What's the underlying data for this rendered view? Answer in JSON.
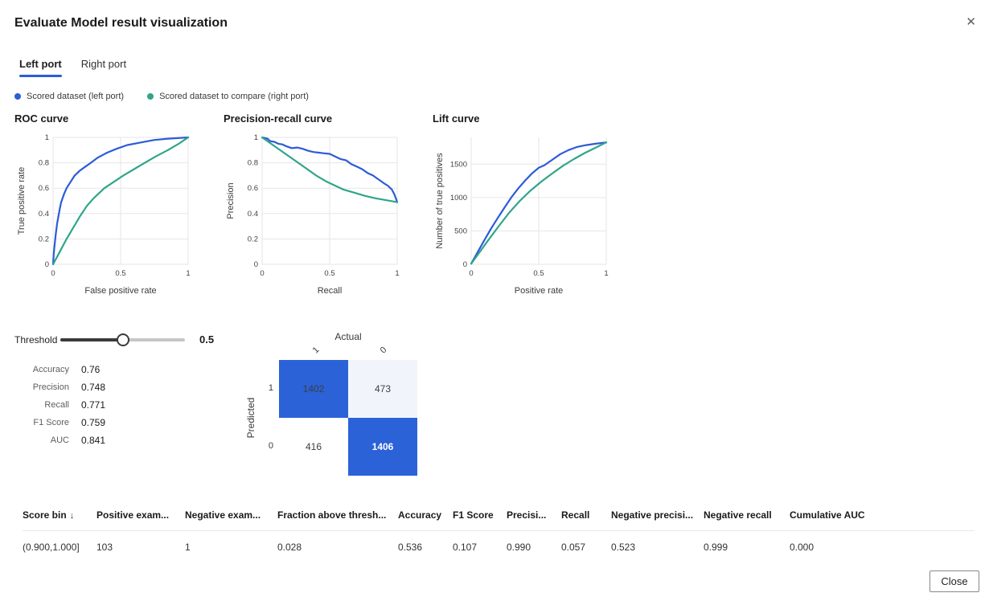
{
  "dialog": {
    "title": "Evaluate Model result visualization",
    "close_icon": "✕"
  },
  "colors": {
    "accent_blue": "#2b5cd9",
    "series_blue": "#2d5bd8",
    "series_green": "#2fa58a",
    "matrix_blue": "#2b62d8",
    "matrix_light_blue": "#f1f5fb",
    "matrix_white": "#ffffff"
  },
  "tabs": [
    {
      "label": "Left port",
      "active": true
    },
    {
      "label": "Right port",
      "active": false
    }
  ],
  "legend": [
    {
      "label": "Scored dataset (left port)",
      "color": "#2b5cd9"
    },
    {
      "label": "Scored dataset to compare (right port)",
      "color": "#2fa58a"
    }
  ],
  "chart_data": [
    {
      "type": "line",
      "title": "ROC curve",
      "xlabel": "False positive rate",
      "ylabel": "True positive rate",
      "xlim": [
        0,
        1
      ],
      "ylim": [
        0,
        1
      ],
      "xticks": [
        0,
        0.5,
        1
      ],
      "xtick_labels": [
        "0",
        "0.5",
        "1"
      ],
      "yticks": [
        0,
        0.2,
        0.4,
        0.6,
        0.8,
        1
      ],
      "ytick_labels": [
        "0",
        "0.2",
        "0.4",
        "0.6",
        "0.8",
        "1"
      ],
      "grid": true,
      "legend_position": "shared-top",
      "series": [
        {
          "name": "Scored dataset (left port)",
          "color": "#2d5bd8",
          "points": [
            [
              0,
              0
            ],
            [
              0.005,
              0.08
            ],
            [
              0.01,
              0.14
            ],
            [
              0.02,
              0.24
            ],
            [
              0.03,
              0.32
            ],
            [
              0.04,
              0.38
            ],
            [
              0.05,
              0.44
            ],
            [
              0.06,
              0.49
            ],
            [
              0.08,
              0.55
            ],
            [
              0.1,
              0.6
            ],
            [
              0.13,
              0.65
            ],
            [
              0.16,
              0.7
            ],
            [
              0.2,
              0.74
            ],
            [
              0.24,
              0.77
            ],
            [
              0.28,
              0.8
            ],
            [
              0.33,
              0.84
            ],
            [
              0.4,
              0.88
            ],
            [
              0.47,
              0.91
            ],
            [
              0.55,
              0.94
            ],
            [
              0.65,
              0.96
            ],
            [
              0.75,
              0.98
            ],
            [
              0.85,
              0.99
            ],
            [
              1,
              1
            ]
          ]
        },
        {
          "name": "Scored dataset to compare (right port)",
          "color": "#2fa58a",
          "points": [
            [
              0,
              0
            ],
            [
              0.05,
              0.1
            ],
            [
              0.1,
              0.2
            ],
            [
              0.15,
              0.29
            ],
            [
              0.2,
              0.38
            ],
            [
              0.25,
              0.46
            ],
            [
              0.3,
              0.52
            ],
            [
              0.33,
              0.55
            ],
            [
              0.38,
              0.6
            ],
            [
              0.45,
              0.65
            ],
            [
              0.52,
              0.7
            ],
            [
              0.6,
              0.75
            ],
            [
              0.68,
              0.8
            ],
            [
              0.76,
              0.85
            ],
            [
              0.85,
              0.9
            ],
            [
              0.93,
              0.95
            ],
            [
              1,
              1
            ]
          ]
        }
      ]
    },
    {
      "type": "line",
      "title": "Precision-recall curve",
      "xlabel": "Recall",
      "ylabel": "Precision",
      "xlim": [
        0,
        1
      ],
      "ylim": [
        0,
        1
      ],
      "xticks": [
        0,
        0.5,
        1
      ],
      "xtick_labels": [
        "0",
        "0.5",
        "1"
      ],
      "yticks": [
        0,
        0.2,
        0.4,
        0.6,
        0.8,
        1
      ],
      "ytick_labels": [
        "0",
        "0.2",
        "0.4",
        "0.6",
        "0.8",
        "1"
      ],
      "grid": true,
      "legend_position": "shared-top",
      "series": [
        {
          "name": "Scored dataset (left port)",
          "color": "#2d5bd8",
          "points": [
            [
              0,
              1
            ],
            [
              0.04,
              0.99
            ],
            [
              0.06,
              0.97
            ],
            [
              0.09,
              0.965
            ],
            [
              0.12,
              0.95
            ],
            [
              0.15,
              0.945
            ],
            [
              0.18,
              0.93
            ],
            [
              0.22,
              0.915
            ],
            [
              0.26,
              0.92
            ],
            [
              0.3,
              0.91
            ],
            [
              0.34,
              0.895
            ],
            [
              0.38,
              0.885
            ],
            [
              0.42,
              0.88
            ],
            [
              0.46,
              0.875
            ],
            [
              0.5,
              0.87
            ],
            [
              0.54,
              0.85
            ],
            [
              0.58,
              0.83
            ],
            [
              0.62,
              0.82
            ],
            [
              0.66,
              0.79
            ],
            [
              0.7,
              0.77
            ],
            [
              0.74,
              0.75
            ],
            [
              0.78,
              0.72
            ],
            [
              0.82,
              0.7
            ],
            [
              0.86,
              0.67
            ],
            [
              0.9,
              0.64
            ],
            [
              0.93,
              0.62
            ],
            [
              0.96,
              0.59
            ],
            [
              0.98,
              0.55
            ],
            [
              1,
              0.49
            ]
          ]
        },
        {
          "name": "Scored dataset to compare (right port)",
          "color": "#2fa58a",
          "points": [
            [
              0,
              1
            ],
            [
              0.08,
              0.94
            ],
            [
              0.16,
              0.88
            ],
            [
              0.24,
              0.82
            ],
            [
              0.32,
              0.76
            ],
            [
              0.4,
              0.7
            ],
            [
              0.48,
              0.65
            ],
            [
              0.54,
              0.62
            ],
            [
              0.6,
              0.59
            ],
            [
              0.68,
              0.565
            ],
            [
              0.76,
              0.54
            ],
            [
              0.84,
              0.52
            ],
            [
              0.92,
              0.505
            ],
            [
              1,
              0.49
            ]
          ]
        }
      ]
    },
    {
      "type": "line",
      "title": "Lift curve",
      "xlabel": "Positive rate",
      "ylabel": "Number of true positives",
      "xlim": [
        0,
        1
      ],
      "ylim": [
        0,
        1900
      ],
      "xticks": [
        0,
        0.5,
        1
      ],
      "xtick_labels": [
        "0",
        "0.5",
        "1"
      ],
      "yticks": [
        0,
        500,
        1000,
        1500
      ],
      "ytick_labels": [
        "0",
        "500",
        "1000",
        "1500"
      ],
      "grid": true,
      "legend_position": "shared-top",
      "series": [
        {
          "name": "Scored dataset (left port)",
          "color": "#2d5bd8",
          "points": [
            [
              0,
              10
            ],
            [
              0.05,
              190
            ],
            [
              0.1,
              370
            ],
            [
              0.15,
              545
            ],
            [
              0.2,
              705
            ],
            [
              0.25,
              860
            ],
            [
              0.3,
              1010
            ],
            [
              0.35,
              1140
            ],
            [
              0.4,
              1255
            ],
            [
              0.45,
              1360
            ],
            [
              0.5,
              1445
            ],
            [
              0.54,
              1480
            ],
            [
              0.6,
              1565
            ],
            [
              0.66,
              1650
            ],
            [
              0.72,
              1710
            ],
            [
              0.78,
              1755
            ],
            [
              0.85,
              1785
            ],
            [
              0.92,
              1805
            ],
            [
              1,
              1825
            ]
          ]
        },
        {
          "name": "Scored dataset to compare (right port)",
          "color": "#2fa58a",
          "points": [
            [
              0,
              10
            ],
            [
              0.06,
              175
            ],
            [
              0.12,
              345
            ],
            [
              0.2,
              560
            ],
            [
              0.28,
              770
            ],
            [
              0.36,
              950
            ],
            [
              0.44,
              1105
            ],
            [
              0.52,
              1240
            ],
            [
              0.6,
              1360
            ],
            [
              0.68,
              1475
            ],
            [
              0.76,
              1575
            ],
            [
              0.84,
              1665
            ],
            [
              0.92,
              1745
            ],
            [
              1,
              1825
            ]
          ]
        }
      ]
    }
  ],
  "threshold": {
    "label": "Threshold",
    "value": 0.5,
    "display_value": "0.5",
    "min": 0,
    "max": 1
  },
  "metrics": [
    {
      "label": "Accuracy",
      "value": "0.76"
    },
    {
      "label": "Precision",
      "value": "0.748"
    },
    {
      "label": "Recall",
      "value": "0.771"
    },
    {
      "label": "F1 Score",
      "value": "0.759"
    },
    {
      "label": "AUC",
      "value": "0.841"
    }
  ],
  "confusion_matrix": {
    "actual_label": "Actual",
    "predicted_label": "Predicted",
    "col_labels": [
      "1",
      "0"
    ],
    "row_labels": [
      "1",
      "0"
    ],
    "cells": [
      "1402",
      "473",
      "416",
      "1406"
    ],
    "cell_styles": [
      "blue-dark-text",
      "light",
      "white",
      "blue-white-text"
    ]
  },
  "table": {
    "columns": [
      "Score bin",
      "Positive exam...",
      "Negative exam...",
      "Fraction above thresh...",
      "Accuracy",
      "F1 Score",
      "Precisi...",
      "Recall",
      "Negative precisi...",
      "Negative recall",
      "Cumulative AUC"
    ],
    "sort_column": 0,
    "sort_icon": "↓",
    "rows": [
      [
        "(0.900,1.000]",
        "103",
        "1",
        "0.028",
        "0.536",
        "0.107",
        "0.990",
        "0.057",
        "0.523",
        "0.999",
        "0.000"
      ]
    ]
  },
  "footer": {
    "close_label": "Close"
  }
}
